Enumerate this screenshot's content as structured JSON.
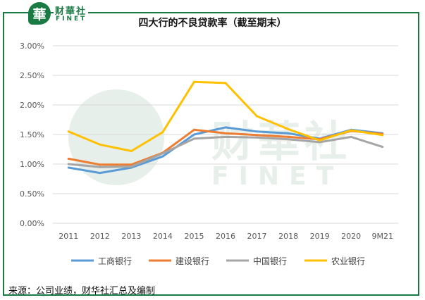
{
  "brand": {
    "name_cn": "财華社",
    "name_en": "FINET",
    "logo_glyph": "華"
  },
  "colors": {
    "frame": "#1a7a44",
    "grid": "#d9d9d9",
    "axis_text": "#595959",
    "watermark": "#e6efe9"
  },
  "chart_data": {
    "type": "line",
    "title": "四大行的不良贷款率（截至期末）",
    "categories": [
      "2011",
      "2012",
      "2013",
      "2014",
      "2015",
      "2016",
      "2017",
      "2018",
      "2019",
      "2020",
      "9M21"
    ],
    "y_ticks": [
      "0.00%",
      "0.50%",
      "1.00%",
      "1.50%",
      "2.00%",
      "2.50%",
      "3.00%"
    ],
    "ylim": [
      0,
      3
    ],
    "grid": true,
    "legend_position": "bottom",
    "series": [
      {
        "name": "工商银行",
        "color": "#5b9bd5",
        "values": [
          0.94,
          0.85,
          0.94,
          1.13,
          1.5,
          1.62,
          1.55,
          1.52,
          1.43,
          1.58,
          1.52
        ]
      },
      {
        "name": "建设银行",
        "color": "#ed7d31",
        "values": [
          1.09,
          0.99,
          0.99,
          1.19,
          1.58,
          1.52,
          1.49,
          1.46,
          1.42,
          1.56,
          1.51
        ]
      },
      {
        "name": "中国银行",
        "color": "#a5a5a5",
        "values": [
          1.0,
          0.95,
          0.96,
          1.18,
          1.43,
          1.46,
          1.45,
          1.42,
          1.37,
          1.46,
          1.29
        ]
      },
      {
        "name": "农业银行",
        "color": "#ffc000",
        "values": [
          1.55,
          1.33,
          1.22,
          1.54,
          2.39,
          2.37,
          1.81,
          1.59,
          1.4,
          1.57,
          1.49
        ]
      }
    ]
  },
  "source_note": "来源：公司业绩，财华社汇总及编制"
}
